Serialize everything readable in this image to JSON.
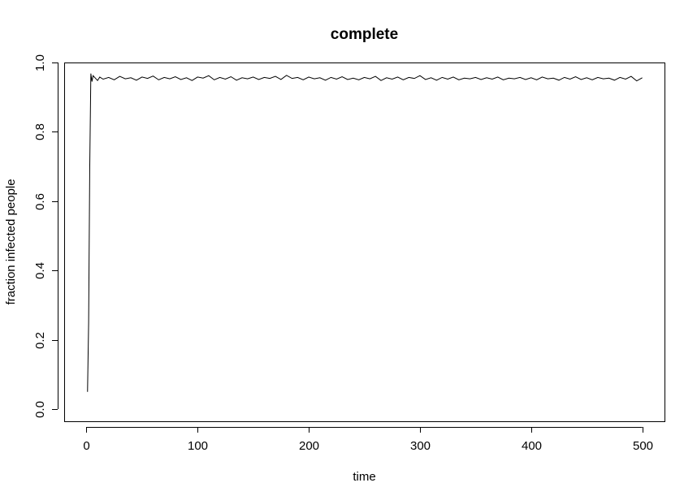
{
  "chart_data": {
    "type": "line",
    "title": "complete",
    "xlabel": "time",
    "ylabel": "fraction infected people",
    "xlim": [
      -20,
      520
    ],
    "ylim": [
      -0.035,
      1.0
    ],
    "xticks": [
      0,
      100,
      200,
      300,
      400,
      500
    ],
    "xtick_labels": [
      "0",
      "100",
      "200",
      "300",
      "400",
      "500"
    ],
    "yticks": [
      0.0,
      0.2,
      0.4,
      0.6,
      0.8,
      1.0
    ],
    "ytick_labels": [
      "0.0",
      "0.2",
      "0.4",
      "0.6",
      "0.8",
      "1.0"
    ],
    "grid": false,
    "series": [
      {
        "x": [
          1,
          2,
          3,
          4,
          5,
          6,
          8,
          10,
          12,
          15,
          20,
          25,
          30,
          35,
          40,
          45,
          50,
          55,
          60,
          65,
          70,
          75,
          80,
          85,
          90,
          95,
          100,
          105,
          110,
          115,
          120,
          125,
          130,
          135,
          140,
          145,
          150,
          155,
          160,
          165,
          170,
          175,
          180,
          185,
          190,
          195,
          200,
          205,
          210,
          215,
          220,
          225,
          230,
          235,
          240,
          245,
          250,
          255,
          260,
          265,
          270,
          275,
          280,
          285,
          290,
          295,
          300,
          305,
          310,
          315,
          320,
          325,
          330,
          335,
          340,
          345,
          350,
          355,
          360,
          365,
          370,
          375,
          380,
          385,
          390,
          395,
          400,
          405,
          410,
          415,
          420,
          425,
          430,
          435,
          440,
          445,
          450,
          455,
          460,
          465,
          470,
          475,
          480,
          485,
          490,
          495,
          500
        ],
        "y": [
          0.05,
          0.25,
          0.7,
          0.968,
          0.945,
          0.962,
          0.955,
          0.948,
          0.958,
          0.952,
          0.957,
          0.95,
          0.96,
          0.953,
          0.956,
          0.949,
          0.958,
          0.954,
          0.961,
          0.95,
          0.957,
          0.953,
          0.959,
          0.951,
          0.956,
          0.948,
          0.958,
          0.955,
          0.962,
          0.95,
          0.957,
          0.952,
          0.959,
          0.949,
          0.956,
          0.953,
          0.958,
          0.951,
          0.957,
          0.954,
          0.96,
          0.951,
          0.963,
          0.954,
          0.957,
          0.95,
          0.958,
          0.953,
          0.956,
          0.949,
          0.957,
          0.952,
          0.959,
          0.951,
          0.955,
          0.95,
          0.957,
          0.953,
          0.96,
          0.948,
          0.956,
          0.952,
          0.958,
          0.95,
          0.957,
          0.954,
          0.962,
          0.951,
          0.956,
          0.949,
          0.957,
          0.952,
          0.958,
          0.95,
          0.955,
          0.953,
          0.957,
          0.951,
          0.956,
          0.952,
          0.958,
          0.95,
          0.955,
          0.953,
          0.957,
          0.951,
          0.956,
          0.95,
          0.958,
          0.953,
          0.955,
          0.949,
          0.957,
          0.952,
          0.959,
          0.951,
          0.956,
          0.95,
          0.957,
          0.953,
          0.955,
          0.949,
          0.957,
          0.952,
          0.96,
          0.947,
          0.956
        ]
      }
    ]
  }
}
